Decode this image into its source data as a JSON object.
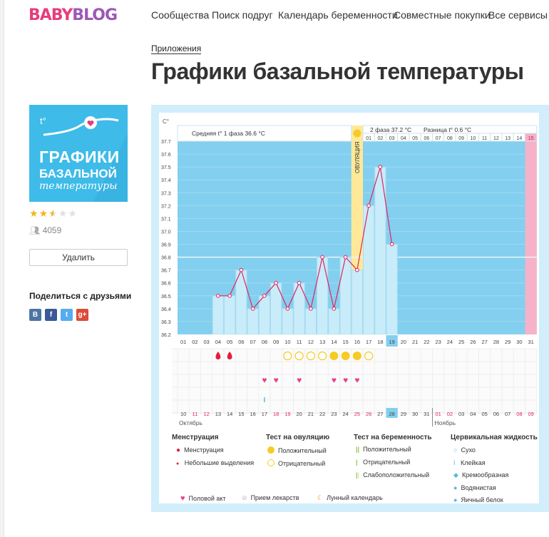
{
  "logo": {
    "part1": "BABY",
    "part2": "BLOG"
  },
  "nav": [
    "Сообщества",
    "Поиск подруг",
    "Календарь беременности",
    "Совместные покупки",
    "Все сервисы"
  ],
  "breadcrumb": "Приложения",
  "page_title": "Графики базальной температуры",
  "app": {
    "icon_line1": "ГРАФИКИ",
    "icon_line2": "БАЗАЛЬНОЙ",
    "icon_line3": "температуры",
    "icon_symbol": "t°",
    "rating": 2.5,
    "rating_max": 5,
    "users_count": "4059",
    "delete_label": "Удалить",
    "share_title": "Поделиться с друзьями",
    "share_icons": [
      {
        "name": "vkontakte-icon",
        "glyph": "В",
        "color": "#4c75a3"
      },
      {
        "name": "facebook-icon",
        "glyph": "f",
        "color": "#3b5998"
      },
      {
        "name": "twitter-icon",
        "glyph": "t",
        "color": "#55acee"
      },
      {
        "name": "google-plus-icon",
        "glyph": "g+",
        "color": "#dd4b39"
      }
    ]
  },
  "chart_data": {
    "type": "line",
    "y_unit": "C°",
    "ylim": [
      36.2,
      37.7
    ],
    "y_ticks": [
      "37.7",
      "37.6",
      "37.5",
      "37.4",
      "37.3",
      "37.2",
      "37.1",
      "37.0",
      "36.9",
      "36.8",
      "36.7",
      "36.6",
      "36.5",
      "36.4",
      "36.3",
      "36.2"
    ],
    "phase1_label": "Средняя t° 1 фаза 36.6 °C",
    "phase2_label": "2 фаза 37.2 °C",
    "diff_label": "Разница t° 0.6 °C",
    "ovulation_label": "ОВУЛЯЦИЯ",
    "coverline": 36.8,
    "cycle_days": [
      "01",
      "02",
      "03",
      "04",
      "05",
      "06",
      "07",
      "08",
      "09",
      "10",
      "11",
      "12",
      "13",
      "14",
      "15",
      "16",
      "17",
      "18",
      "19",
      "20",
      "21",
      "22",
      "23",
      "24",
      "25",
      "26",
      "27",
      "28",
      "29",
      "30",
      "31"
    ],
    "highlight_cycle_day": "19",
    "phase2_days": [
      "01",
      "02",
      "03",
      "04",
      "05",
      "06",
      "07",
      "08",
      "09",
      "10",
      "11",
      "12",
      "13",
      "14",
      "15"
    ],
    "ovulation_day": 16,
    "temperature_days": [
      4,
      5,
      6,
      7,
      8,
      9,
      10,
      11,
      12,
      13,
      14,
      15,
      16,
      17,
      18,
      19
    ],
    "temperatures": [
      36.5,
      36.5,
      36.7,
      36.4,
      36.5,
      36.6,
      36.4,
      36.6,
      36.4,
      36.8,
      36.4,
      36.8,
      36.7,
      37.2,
      37.5,
      36.9
    ],
    "menstruation_days": [
      4,
      5
    ],
    "ovulation_test_negative_days": [
      10,
      11,
      12,
      13,
      17
    ],
    "ovulation_test_positive_days": [
      14,
      15,
      16
    ],
    "intercourse_days": [
      8,
      9,
      11,
      14,
      15,
      16
    ],
    "cervical_clingy_day": 8,
    "calendar_dates": [
      "10",
      "11",
      "12",
      "13",
      "14",
      "15",
      "16",
      "17",
      "18",
      "19",
      "20",
      "21",
      "22",
      "23",
      "24",
      "25",
      "26",
      "27",
      "28",
      "29",
      "30",
      "31",
      "01",
      "02",
      "03",
      "04",
      "05",
      "06",
      "07",
      "08",
      "09"
    ],
    "weekend_indices": [
      1,
      2,
      8,
      9,
      15,
      16,
      22,
      23,
      29,
      30
    ],
    "highlight_date_index": 18,
    "month1": "Октябрь",
    "month2": "Ноябрь"
  },
  "legend": {
    "menstruation": {
      "title": "Менструация",
      "items": [
        "Менструация",
        "Небольшие выделения"
      ]
    },
    "ovulation_test": {
      "title": "Тест на овуляцию",
      "items": [
        "Положительный",
        "Отрицательный"
      ]
    },
    "pregnancy_test": {
      "title": "Тест на беременность",
      "items": [
        "Положительный",
        "Отрицательный",
        "Слабоположительный"
      ]
    },
    "cervical": {
      "title": "Цервикальная жидкость",
      "items": [
        "Сухо",
        "Клейкая",
        "Кремообразная",
        "Водянистая",
        "Яичный белок"
      ]
    },
    "bottom": [
      "Половой акт",
      "Прием лекарств",
      "Лунный календарь"
    ]
  },
  "colors": {
    "pink": "#e73c7e",
    "blue_bg": "#7fcdee",
    "frame": "#d1eefa",
    "ovulation": "#ffe999",
    "line": "#e0245e",
    "yellow": "#f7cb24"
  }
}
